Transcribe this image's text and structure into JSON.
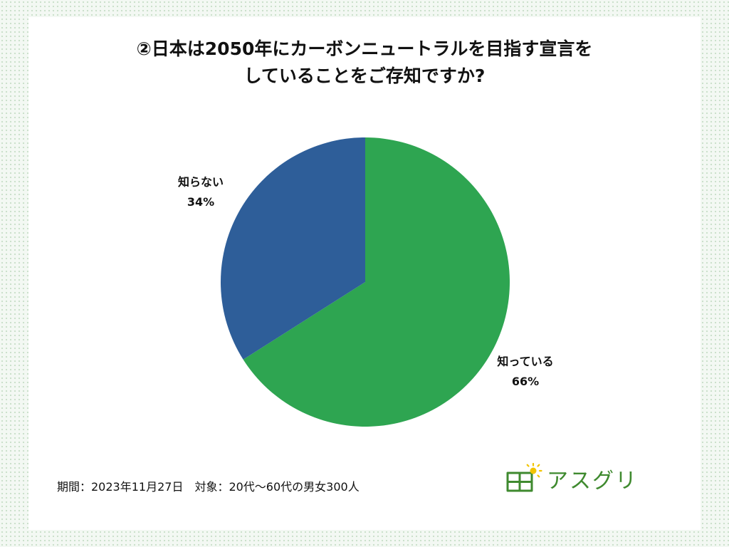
{
  "chart_data": {
    "type": "pie",
    "title_lines": [
      "②日本は2050年にカーボンニュートラルを目指す宣言を",
      "していることをご存知ですか?"
    ],
    "slices": [
      {
        "label": "知っている",
        "value": 66,
        "value_label": "66%",
        "color": "#2ea551"
      },
      {
        "label": "知らない",
        "value": 34,
        "value_label": "34%",
        "color": "#2e5e99"
      }
    ]
  },
  "footnote": "期間：2023年11月27日　対象：20代〜60代の男女300人",
  "brand": {
    "name": "アスグリ",
    "color": "#3f8a2f",
    "icon": "solar-panel-sun-icon"
  }
}
